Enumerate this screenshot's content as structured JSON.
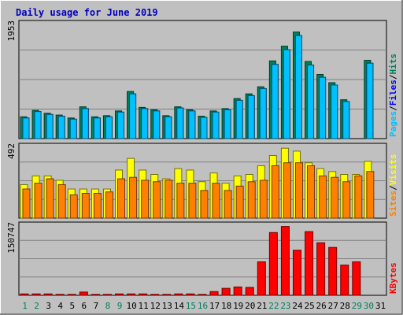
{
  "title": "Daily usage for June 2019",
  "colors": {
    "background": "#c0c0c0",
    "title": "#0000c0",
    "hits": "#00805c",
    "files": "#0000ff",
    "pages": "#00c0ff",
    "visits": "#ffff00",
    "sites": "#ff8000",
    "kbytes": "#ff0000",
    "weekend_day": "#00805c",
    "weekday": "#000000"
  },
  "chart_data": [
    {
      "type": "bar",
      "name": "hits-files-pages",
      "ymax_label": "1953",
      "ylim": [
        0,
        1953
      ],
      "categories": [
        "1",
        "2",
        "3",
        "4",
        "5",
        "6",
        "7",
        "8",
        "9",
        "10",
        "11",
        "12",
        "13",
        "14",
        "15",
        "16",
        "17",
        "18",
        "19",
        "20",
        "21",
        "22",
        "23",
        "24",
        "25",
        "26",
        "27",
        "28",
        "29",
        "30",
        "31"
      ],
      "legend": [
        {
          "label": "Pages",
          "color_key": "pages"
        },
        {
          "label": "/",
          "color_key": "weekday"
        },
        {
          "label": "Files",
          "color_key": "files"
        },
        {
          "label": "/",
          "color_key": "weekday"
        },
        {
          "label": "Hits",
          "color_key": "hits"
        }
      ],
      "series": [
        {
          "name": "Hits",
          "color_key": "hits",
          "values": [
            370,
            480,
            430,
            400,
            350,
            540,
            370,
            390,
            470,
            800,
            530,
            490,
            390,
            540,
            490,
            380,
            470,
            510,
            680,
            760,
            880,
            1320,
            1570,
            1810,
            1310,
            1090,
            950,
            660,
            0,
            1330,
            0
          ]
        },
        {
          "name": "Files",
          "color_key": "files",
          "values": [
            350,
            460,
            410,
            380,
            330,
            510,
            350,
            370,
            450,
            760,
            510,
            470,
            370,
            520,
            470,
            360,
            450,
            490,
            650,
            730,
            850,
            1260,
            1510,
            1750,
            1250,
            1040,
            910,
            630,
            0,
            1280,
            0
          ]
        },
        {
          "name": "Pages",
          "color_key": "pages",
          "values": [
            350,
            460,
            410,
            380,
            330,
            510,
            350,
            370,
            450,
            760,
            510,
            470,
            370,
            520,
            470,
            360,
            450,
            490,
            650,
            730,
            850,
            1260,
            1510,
            1750,
            1250,
            1040,
            910,
            630,
            0,
            1280,
            0
          ]
        }
      ]
    },
    {
      "type": "bar",
      "name": "visits-sites",
      "ymax_label": "492",
      "ylim": [
        0,
        492
      ],
      "categories": [
        "1",
        "2",
        "3",
        "4",
        "5",
        "6",
        "7",
        "8",
        "9",
        "10",
        "11",
        "12",
        "13",
        "14",
        "15",
        "16",
        "17",
        "18",
        "19",
        "20",
        "21",
        "22",
        "23",
        "24",
        "25",
        "26",
        "27",
        "28",
        "29",
        "30",
        "31"
      ],
      "legend": [
        {
          "label": "Sites",
          "color_key": "sites"
        },
        {
          "label": "/",
          "color_key": "weekday"
        },
        {
          "label": "Visits",
          "color_key": "visits"
        }
      ],
      "series": [
        {
          "name": "Visits",
          "color_key": "visits",
          "values": [
            230,
            290,
            290,
            260,
            200,
            200,
            200,
            200,
            330,
            410,
            330,
            300,
            270,
            340,
            330,
            250,
            310,
            240,
            290,
            300,
            360,
            430,
            480,
            460,
            380,
            340,
            320,
            300,
            300,
            390,
            0
          ]
        },
        {
          "name": "Sites",
          "color_key": "sites",
          "values": [
            200,
            240,
            270,
            230,
            160,
            170,
            170,
            180,
            270,
            280,
            260,
            250,
            260,
            240,
            240,
            190,
            240,
            190,
            220,
            250,
            260,
            360,
            380,
            380,
            360,
            290,
            280,
            250,
            290,
            320,
            0
          ]
        }
      ]
    },
    {
      "type": "bar",
      "name": "kbytes",
      "ymax_label": "150747",
      "ylim": [
        0,
        150747
      ],
      "categories": [
        "1",
        "2",
        "3",
        "4",
        "5",
        "6",
        "7",
        "8",
        "9",
        "10",
        "11",
        "12",
        "13",
        "14",
        "15",
        "16",
        "17",
        "18",
        "19",
        "20",
        "21",
        "22",
        "23",
        "24",
        "25",
        "26",
        "27",
        "28",
        "29",
        "30",
        "31"
      ],
      "legend": [
        {
          "label": "KBytes",
          "color_key": "kbytes"
        }
      ],
      "series": [
        {
          "name": "KBytes",
          "color_key": "kbytes",
          "values": [
            3000,
            3000,
            3000,
            2000,
            2000,
            7000,
            2000,
            2000,
            3000,
            3000,
            3000,
            2000,
            2000,
            3000,
            3000,
            2000,
            8000,
            15000,
            18000,
            17000,
            72000,
            135000,
            148000,
            97000,
            137000,
            113000,
            103000,
            65000,
            72000,
            0,
            0
          ]
        }
      ]
    }
  ],
  "weekend_days": [
    1,
    2,
    8,
    9,
    15,
    16,
    22,
    23,
    29,
    30
  ]
}
